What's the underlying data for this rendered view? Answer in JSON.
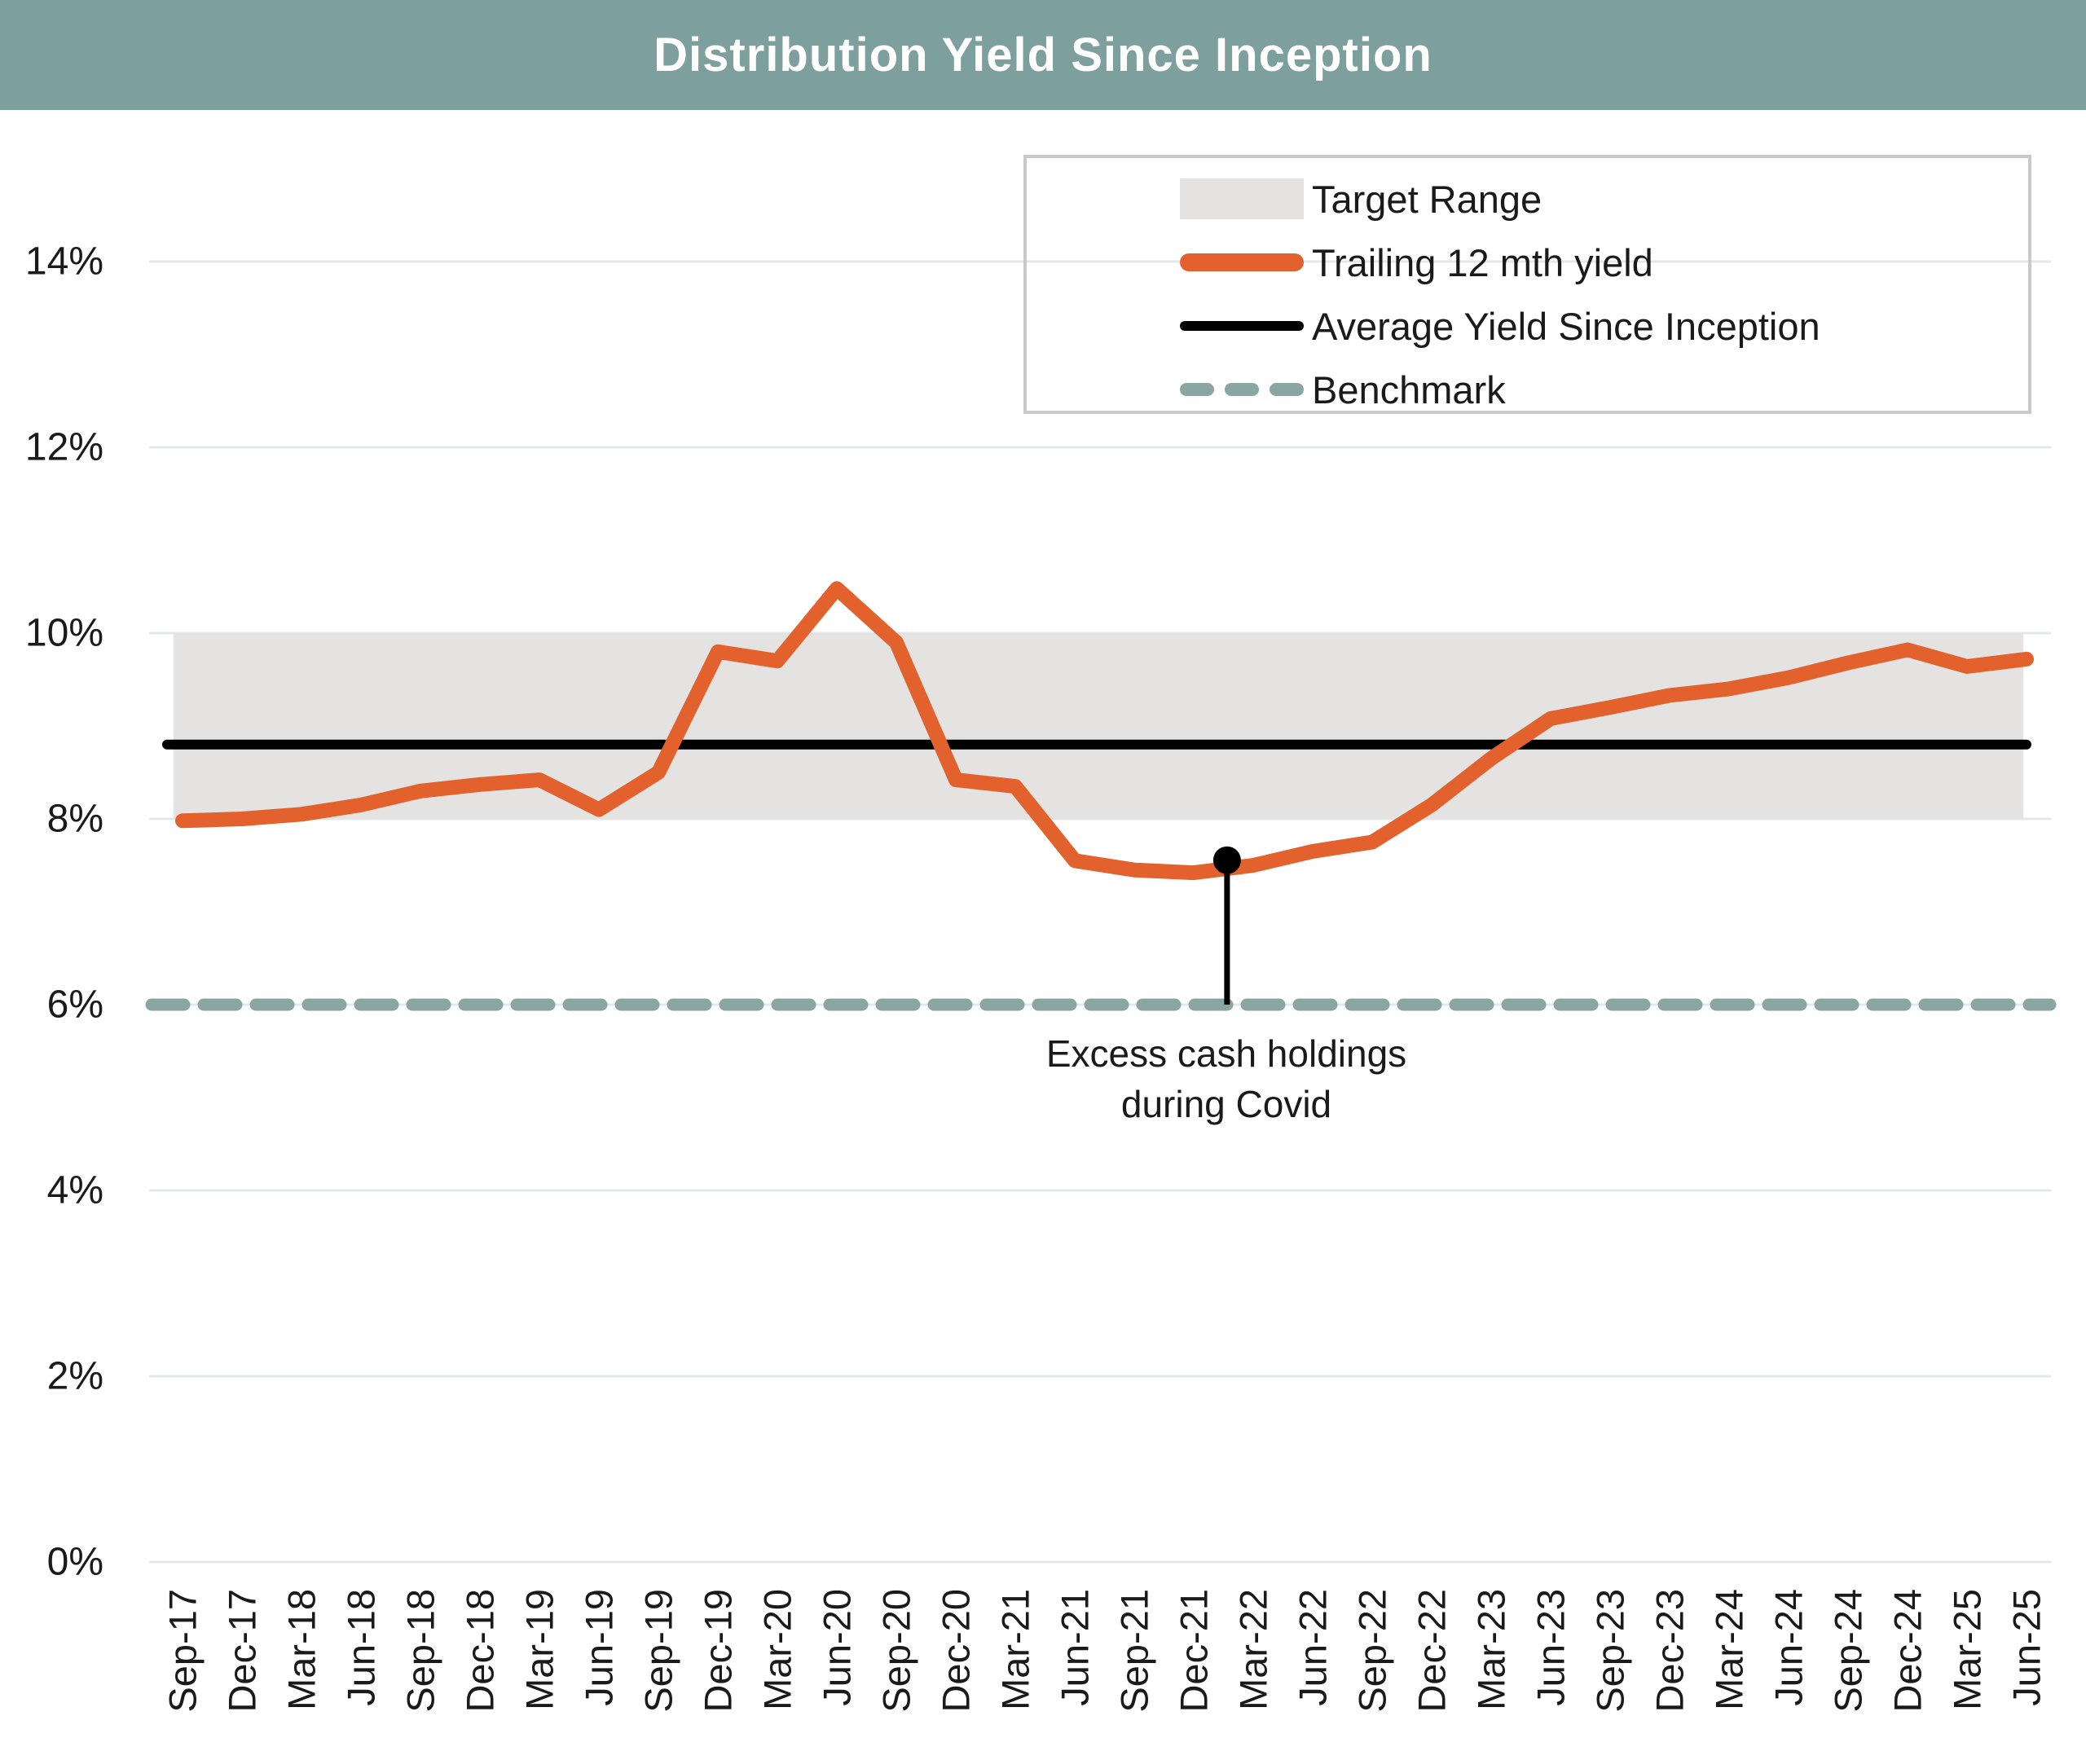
{
  "header": {
    "title": "Distribution Yield Since Inception",
    "bg_color": "#7d9f9d",
    "text_color": "#ffffff"
  },
  "chart_data": {
    "type": "line",
    "title": "Distribution Yield Since Inception",
    "categories": [
      "Sep-17",
      "Dec-17",
      "Mar-18",
      "Jun-18",
      "Sep-18",
      "Dec-18",
      "Mar-19",
      "Jun-19",
      "Sep-19",
      "Dec-19",
      "Mar-20",
      "Jun-20",
      "Sep-20",
      "Dec-20",
      "Mar-21",
      "Jun-21",
      "Sep-21",
      "Dec-21",
      "Mar-22",
      "Jun-22",
      "Sep-22",
      "Dec-22",
      "Mar-23",
      "Jun-23",
      "Sep-23",
      "Dec-23",
      "Mar-24",
      "Jun-24",
      "Sep-24",
      "Dec-24",
      "Mar-25",
      "Jun-25"
    ],
    "series": [
      {
        "name": "Trailing 12 mth yield",
        "type": "line",
        "color": "#e2612c",
        "values": [
          7.98,
          8.0,
          8.05,
          8.15,
          8.3,
          8.37,
          8.42,
          8.1,
          8.5,
          9.8,
          9.7,
          10.48,
          9.9,
          8.42,
          8.35,
          7.55,
          7.45,
          7.42,
          7.5,
          7.65,
          7.75,
          8.15,
          8.65,
          9.08,
          9.2,
          9.33,
          9.4,
          9.52,
          9.68,
          9.82,
          9.64,
          9.72
        ]
      },
      {
        "name": "Average Yield Since Inception",
        "type": "constant",
        "color": "#000000",
        "value": 8.8
      },
      {
        "name": "Benchmark",
        "type": "constant-dashed",
        "color": "#8aa6a3",
        "value": 6.0
      }
    ],
    "target_range": {
      "label": "Target Range",
      "low": 8.0,
      "high": 10.0,
      "color": "#e4e3e1"
    },
    "y_axis": {
      "min": 0,
      "max": 14,
      "tick_values": [
        14,
        12,
        10,
        8,
        6,
        4,
        2,
        0
      ],
      "tick_labels": [
        "14%",
        "12%",
        "10%",
        "8%",
        "6%",
        "4%",
        "2%",
        "0%"
      ],
      "grid": true,
      "grid_color": "#e3e7ea"
    },
    "x_axis": {
      "label_rotation_deg": -90
    },
    "legend": {
      "position": "top-right",
      "entries": [
        {
          "label": "Target Range",
          "swatch": "band"
        },
        {
          "label": "Trailing 12 mth yield",
          "swatch": "orange-line"
        },
        {
          "label": "Average Yield Since Inception",
          "swatch": "black-line"
        },
        {
          "label": "Benchmark",
          "swatch": "dashed-line"
        }
      ]
    },
    "annotation": {
      "line1": "Excess cash holdings",
      "line2": "during Covid",
      "marker_value": 7.52,
      "marker_x_index": 17.56,
      "pointer_to_value": 6.0
    }
  }
}
